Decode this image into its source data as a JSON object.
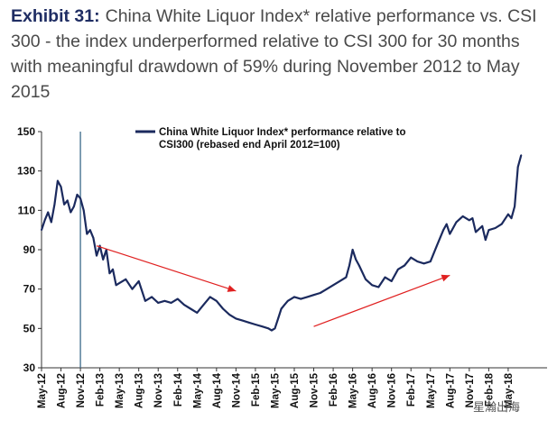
{
  "heading": {
    "label": "Exhibit 31:",
    "text": "China White Liquor Index* relative performance vs. CSI 300 - the index underperformed relative to CSI 300 for 30 months with meaningful drawdown of 59% during November 2012 to May 2015"
  },
  "watermark": "星瀚出海",
  "colors": {
    "line": "#1b2a5e",
    "arrow": "#e02020",
    "axis": "#333333",
    "refline": "#3c6a8a"
  },
  "chart_data": {
    "type": "line",
    "title": "",
    "xlabel": "",
    "ylabel": "",
    "ylim": [
      30,
      150
    ],
    "yticks": [
      30,
      50,
      70,
      90,
      110,
      130,
      150
    ],
    "xlim": [
      0,
      78
    ],
    "x_ticks": [
      {
        "label": "May-12",
        "x": 0
      },
      {
        "label": "Aug-12",
        "x": 3
      },
      {
        "label": "Nov-12",
        "x": 6
      },
      {
        "label": "Feb-13",
        "x": 9
      },
      {
        "label": "May-13",
        "x": 12
      },
      {
        "label": "Aug-13",
        "x": 15
      },
      {
        "label": "Nov-13",
        "x": 18
      },
      {
        "label": "Feb-14",
        "x": 21
      },
      {
        "label": "May-14",
        "x": 24
      },
      {
        "label": "Aug-14",
        "x": 27
      },
      {
        "label": "Nov-14",
        "x": 30
      },
      {
        "label": "Feb-15",
        "x": 33
      },
      {
        "label": "May-15",
        "x": 36
      },
      {
        "label": "Aug-15",
        "x": 39
      },
      {
        "label": "Nov-15",
        "x": 42
      },
      {
        "label": "Feb-16",
        "x": 45
      },
      {
        "label": "May-16",
        "x": 48
      },
      {
        "label": "Aug-16",
        "x": 51
      },
      {
        "label": "Nov-16",
        "x": 54
      },
      {
        "label": "Feb-17",
        "x": 57
      },
      {
        "label": "May-17",
        "x": 60
      },
      {
        "label": "Aug-17",
        "x": 63
      },
      {
        "label": "Nov-17",
        "x": 66
      },
      {
        "label": "Feb-18",
        "x": 69
      },
      {
        "label": "May-18",
        "x": 72
      }
    ],
    "legend": "China White Liquor Index* performance relative to CSI300 (rebased end April 2012=100)",
    "vertical_reference_x": 6,
    "series": [
      {
        "name": "China White Liquor Index* performance relative to CSI300 (rebased end April 2012=100)",
        "x": [
          0,
          0.5,
          1,
          1.5,
          2,
          2.5,
          3,
          3.5,
          4,
          4.5,
          5,
          5.5,
          6,
          6.5,
          7,
          7.5,
          8,
          8.5,
          9,
          9.5,
          10,
          10.5,
          11,
          11.5,
          12,
          13,
          14,
          15,
          16,
          17,
          18,
          19,
          20,
          21,
          22,
          23,
          24,
          25,
          26,
          27,
          28,
          29,
          30,
          31,
          32,
          33,
          34,
          35,
          35.5,
          36,
          36.5,
          37,
          37.5,
          38,
          39,
          40,
          41,
          42,
          43,
          44,
          45,
          46,
          47,
          47.5,
          48,
          48.5,
          49,
          50,
          51,
          52,
          53,
          54,
          55,
          56,
          57,
          58,
          59,
          60,
          61,
          62,
          62.5,
          63,
          64,
          65,
          66,
          66.5,
          67,
          68,
          68.5,
          69,
          70,
          71,
          72,
          72.5,
          73,
          73.5,
          74
        ],
        "values": [
          100,
          105,
          109,
          104,
          113,
          125,
          122,
          113,
          115,
          109,
          112,
          118,
          116,
          110,
          98,
          100,
          96,
          87,
          92,
          85,
          90,
          78,
          80,
          72,
          73,
          75,
          70,
          74,
          64,
          66,
          63,
          64,
          63,
          65,
          62,
          60,
          58,
          62,
          66,
          64,
          60,
          57,
          55,
          54,
          53,
          52,
          51,
          50,
          49,
          50,
          55,
          60,
          62,
          64,
          66,
          65,
          66,
          67,
          68,
          70,
          72,
          74,
          76,
          82,
          90,
          85,
          82,
          75,
          72,
          71,
          76,
          74,
          80,
          82,
          86,
          84,
          83,
          84,
          92,
          100,
          103,
          98,
          104,
          107,
          105,
          106,
          99,
          102,
          95,
          100,
          101,
          103,
          108,
          106,
          112,
          132,
          138
        ]
      }
    ],
    "annotations": [
      {
        "type": "arrow",
        "from": [
          8.5,
          92
        ],
        "to": [
          30,
          69
        ]
      },
      {
        "type": "arrow",
        "from": [
          42,
          51
        ],
        "to": [
          63,
          77
        ]
      }
    ]
  }
}
